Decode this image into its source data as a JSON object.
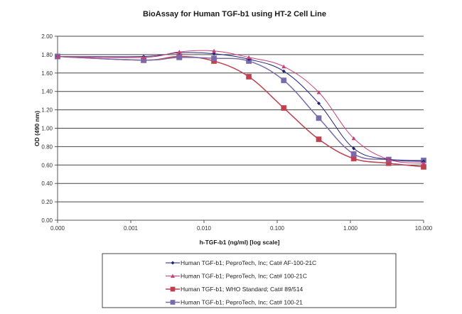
{
  "chart_data": {
    "type": "line",
    "title": "BioAssay for Human TGF-b1 using HT-2 Cell Line",
    "xlabel": "h-TGF-b1  (ng/ml) [log scale]",
    "ylabel": "OD (490 nm)",
    "x_scale": "log",
    "x_tick_labels": [
      "0.000",
      "0.001",
      "0.010",
      "0.100",
      "1.000",
      "10.000"
    ],
    "y_tick_labels": [
      "0.00",
      "0.20",
      "0.40",
      "0.60",
      "0.80",
      "1.00",
      "1.20",
      "1.40",
      "1.60",
      "1.80",
      "2.00"
    ],
    "ylim": [
      0,
      2.0
    ],
    "grid": true,
    "legend_position": "bottom",
    "x": [
      0.0001,
      0.0015,
      0.0046,
      0.0137,
      0.041,
      0.123,
      0.37,
      1.11,
      3.33,
      10.0
    ],
    "series": [
      {
        "name": "Human TGF-b1; PeproTech, Inc; Cat# AF-100-21C",
        "color": "#1f1f7a",
        "marker": "diamond",
        "values": [
          1.78,
          1.78,
          1.82,
          1.81,
          1.75,
          1.62,
          1.27,
          0.78,
          0.66,
          0.64
        ]
      },
      {
        "name": "Human TGF-b1; PeproTech, Inc; Cat# 100-21C",
        "color": "#c8407a",
        "marker": "triangle",
        "values": [
          1.78,
          1.77,
          1.83,
          1.84,
          1.77,
          1.67,
          1.39,
          0.89,
          0.66,
          0.62
        ]
      },
      {
        "name": "Human TGF-b1; WHO Standard; Cat# 89/514",
        "color": "#c04050",
        "marker": "square",
        "values": [
          1.78,
          1.74,
          1.78,
          1.73,
          1.56,
          1.22,
          0.88,
          0.67,
          0.62,
          0.58
        ]
      },
      {
        "name": "Human TGF-b1; PeproTech, Inc; Cat# 100-21",
        "color": "#7a6aaa",
        "marker": "square",
        "values": [
          1.78,
          1.74,
          1.77,
          1.76,
          1.73,
          1.52,
          1.11,
          0.72,
          0.66,
          0.65
        ]
      }
    ]
  }
}
